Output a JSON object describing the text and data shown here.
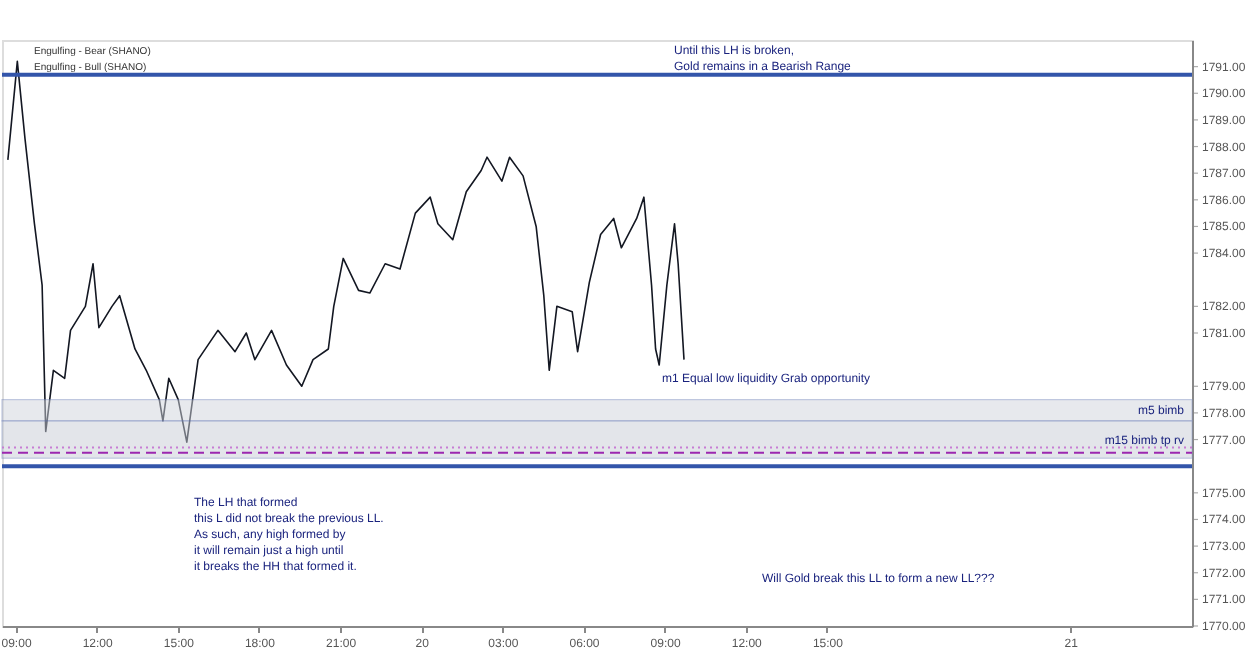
{
  "chart_data": {
    "type": "line",
    "x": [
      "--08-19T08:43",
      "--08-19T09:04",
      "--08-19T09:21",
      "--08-19T09:42",
      "--08-19T09:59",
      "--08-19T10:07",
      "--08-19T10:24",
      "--08-19T10:49",
      "--08-19T11:02",
      "--08-19T11:35",
      "--08-19T11:52",
      "--08-19T12:05",
      "--08-19T12:34",
      "--08-19T12:51",
      "--08-19T13:25",
      "--08-19T13:50",
      "--08-19T14:19",
      "--08-19T14:27",
      "--08-19T14:40",
      "--08-19T15:01",
      "--08-19T15:20",
      "--08-19T15:45",
      "--08-19T16:29",
      "--08-19T17:07",
      "--08-19T17:32",
      "--08-19T17:51",
      "--08-19T18:28",
      "--08-19T19:01",
      "--08-19T19:35",
      "--08-19T20:00",
      "--08-19T20:34",
      "--08-19T20:46",
      "--08-19T21:07",
      "--08-19T21:41",
      "--08-19T22:06",
      "--08-19T22:40",
      "--08-19T23:13",
      "--08-19T23:47",
      "--08-20T00:20",
      "--08-20T00:37",
      "--08-20T01:10",
      "--08-20T01:40",
      "--08-20T02:13",
      "--08-20T02:26",
      "--08-20T02:59",
      "--08-20T03:16",
      "--08-20T03:46",
      "--08-20T04:15",
      "--08-20T04:32",
      "--08-20T04:44",
      "--08-20T05:01",
      "--08-20T05:35",
      "--08-20T05:47",
      "--08-20T06:13",
      "--08-20T06:38",
      "--08-20T07:07",
      "--08-20T07:24",
      "--08-20T07:58",
      "--08-20T08:14",
      "--08-20T08:31",
      "--08-20T08:40",
      "--08-20T08:48",
      "--08-20T09:05",
      "--08-20T09:22",
      "--08-20T09:30",
      "--08-20T09:43"
    ],
    "series": [
      {
        "color": "#131722",
        "values": [
          1787.5,
          1791.2,
          1788.3,
          1785.1,
          1782.8,
          1777.3,
          1779.6,
          1779.3,
          1781.1,
          1782.0,
          1783.6,
          1781.2,
          1782.0,
          1782.4,
          1780.4,
          1779.6,
          1778.5,
          1777.7,
          1779.3,
          1778.5,
          1776.9,
          1780.0,
          1781.1,
          1780.3,
          1781.0,
          1780.0,
          1781.1,
          1779.8,
          1779.0,
          1780.0,
          1780.4,
          1782.0,
          1783.8,
          1782.6,
          1782.5,
          1783.6,
          1783.4,
          1785.5,
          1786.1,
          1785.1,
          1784.5,
          1786.3,
          1787.1,
          1787.6,
          1786.7,
          1787.6,
          1786.9,
          1785.0,
          1782.4,
          1779.6,
          1782.0,
          1781.8,
          1780.3,
          1782.9,
          1784.7,
          1785.3,
          1784.2,
          1785.3,
          1786.1,
          1782.8,
          1780.4,
          1779.8,
          1782.8,
          1785.1,
          1783.6,
          1780.0
        ]
      }
    ],
    "xlim": [
      "--08-19T08:30",
      "--08-21T04:30"
    ],
    "xticks": [
      {
        "value": "--08-19T09:00",
        "label": "09:00"
      },
      {
        "value": "--08-19T12:00",
        "label": "12:00"
      },
      {
        "value": "--08-19T15:00",
        "label": "15:00"
      },
      {
        "value": "--08-19T18:00",
        "label": "18:00"
      },
      {
        "value": "--08-19T21:00",
        "label": "21:00"
      },
      {
        "value": "--08-20T00:00",
        "label": "20"
      },
      {
        "value": "--08-20T03:00",
        "label": "03:00"
      },
      {
        "value": "--08-20T06:00",
        "label": "06:00"
      },
      {
        "value": "--08-20T09:00",
        "label": "09:00"
      },
      {
        "value": "--08-20T12:00",
        "label": "12:00"
      },
      {
        "value": "--08-20T15:00",
        "label": "15:00"
      },
      {
        "value": "--08-21T00:00",
        "label": "21"
      }
    ],
    "ylim": [
      1770,
      1792
    ],
    "yticks": [
      {
        "value": 1770,
        "label": "1770.00"
      },
      {
        "value": 1771,
        "label": "1771.00"
      },
      {
        "value": 1772,
        "label": "1772.00"
      },
      {
        "value": 1773,
        "label": "1773.00"
      },
      {
        "value": 1774,
        "label": "1774.00"
      },
      {
        "value": 1775,
        "label": "1775.00"
      },
      {
        "value": 1777,
        "label": "1777.00"
      },
      {
        "value": 1778,
        "label": "1778.00"
      },
      {
        "value": 1779,
        "label": "1779.00"
      },
      {
        "value": 1781,
        "label": "1781.00"
      },
      {
        "value": 1782,
        "label": "1782.00"
      },
      {
        "value": 1784,
        "label": "1784.00"
      },
      {
        "value": 1785,
        "label": "1785.00"
      },
      {
        "value": 1786,
        "label": "1786.00"
      },
      {
        "value": 1787,
        "label": "1787.00"
      },
      {
        "value": 1788,
        "label": "1788.00"
      },
      {
        "value": 1789,
        "label": "1789.00"
      },
      {
        "value": 1790,
        "label": "1790.00"
      },
      {
        "value": 1791,
        "label": "1791.00"
      }
    ],
    "ref_lines": [
      {
        "axis": "y",
        "value": 1790.7,
        "color": "#3355aa",
        "line_style": "solid"
      },
      {
        "axis": "y",
        "value": 1776.0,
        "color": "#3355aa",
        "line_style": "solid"
      },
      {
        "axis": "y",
        "value": 1776.5,
        "color": "#9c27b0",
        "line_style": "dashed"
      },
      {
        "axis": "y",
        "value": 1776.7,
        "color": "#c77dd4",
        "line_style": "dotted"
      }
    ],
    "bands": [
      {
        "axis": "y",
        "from": 1777.7,
        "to": 1778.5,
        "label": "m5 bimb",
        "color": "#d1d4dc"
      },
      {
        "axis": "y",
        "from": 1776.3,
        "to": 1777.7,
        "label": "m15 bimb tp rv",
        "color": "#c9ccd6"
      }
    ],
    "annotations": [
      "Engulfing - Bear (SHANO)",
      "Engulfing - Bull (SHANO)",
      "Until this LH is broken,\nGold remains in a Bearish Range",
      "m1 Equal low liquidity Grab opportunity",
      "The LH that formed\nthis L did not break the previous LL.\nAs such, any high formed by\nit will remain just a high until\nit breaks the HH that formed it.",
      "Will Gold break this LL to form a new LL???"
    ],
    "grid": false
  }
}
